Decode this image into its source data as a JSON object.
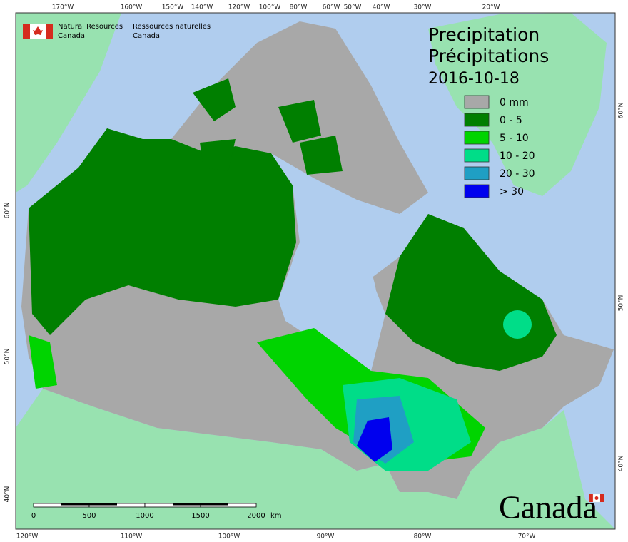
{
  "header": {
    "org_en": [
      "Natural Resources",
      "Canada"
    ],
    "org_fr": [
      "Ressources naturelles",
      "Canada"
    ]
  },
  "title": {
    "en": "Precipitation",
    "fr": "Précipitations",
    "date": "2016-10-18"
  },
  "legend": [
    {
      "label": "0 mm",
      "color": "#a8a8a8"
    },
    {
      "label": "0 - 5",
      "color": "#007f00"
    },
    {
      "label": "5 - 10",
      "color": "#00d400"
    },
    {
      "label": "10 - 20",
      "color": "#00dd88"
    },
    {
      "label": "20 - 30",
      "color": "#1f9fc4"
    },
    {
      "label": "> 30",
      "color": "#0000ee"
    }
  ],
  "graticule": {
    "top": [
      "170°W",
      "160°W",
      "150°W",
      "140°W",
      "120°W",
      "100°W",
      "80°W",
      "60°W",
      "50°W",
      "40°W",
      "30°W",
      "20°W"
    ],
    "bottom": [
      "120°W",
      "110°W",
      "100°W",
      "90°W",
      "80°W",
      "70°W"
    ],
    "left": [
      "60°N",
      "50°N",
      "40°N"
    ],
    "right": [
      "60°N",
      "50°N",
      "40°N"
    ]
  },
  "scale_bar": {
    "labels": [
      "0",
      "500",
      "1000",
      "1500",
      "2000"
    ],
    "unit": "km"
  },
  "wordmark": "Canada"
}
